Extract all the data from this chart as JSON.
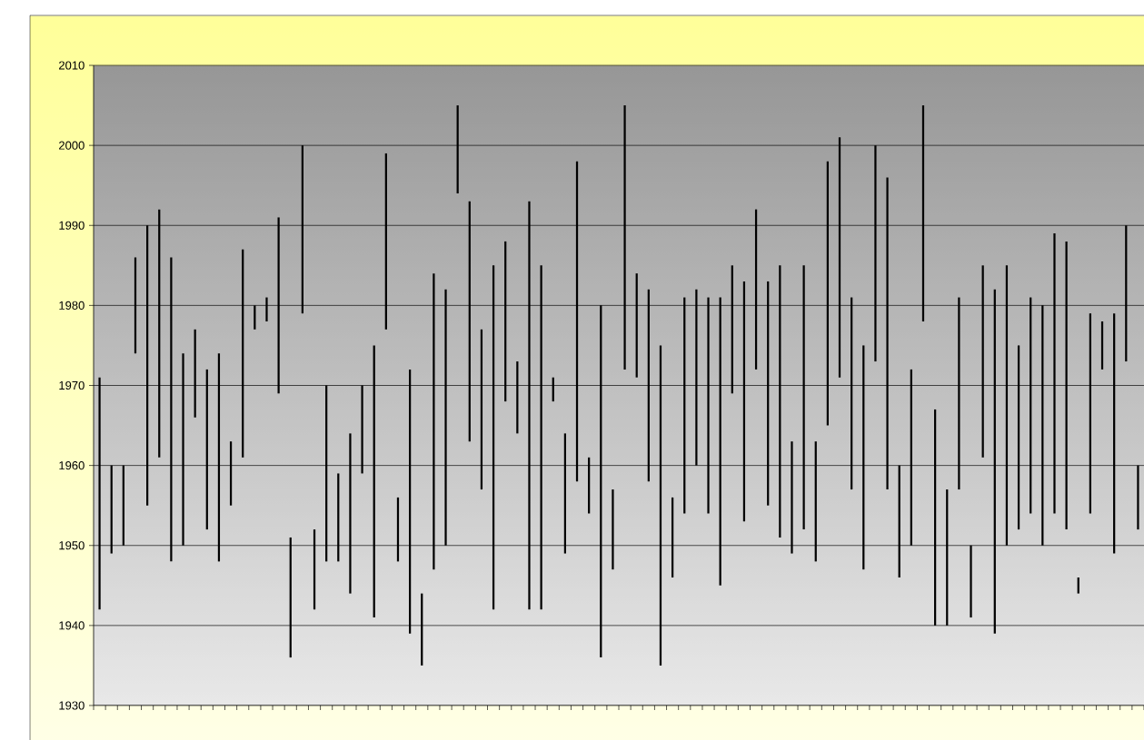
{
  "chart_data": {
    "type": "bar",
    "categories": [
      null,
      null,
      null,
      null,
      null,
      null,
      null,
      null,
      null,
      null,
      null,
      null,
      null,
      null,
      null,
      null,
      null,
      null,
      null,
      null,
      null,
      null,
      null,
      null,
      null,
      null,
      null,
      null,
      null,
      null,
      null,
      null,
      null,
      null,
      null,
      null,
      null,
      null,
      null,
      null,
      null,
      null,
      null,
      null,
      null,
      null,
      null,
      null,
      null,
      null,
      null,
      null,
      null,
      null,
      null,
      null,
      null,
      null,
      null,
      null,
      null,
      null,
      null,
      null,
      null,
      null,
      null,
      null,
      null,
      null,
      null,
      null,
      null,
      null,
      null,
      null,
      null,
      null,
      null,
      null,
      null,
      null,
      null,
      null,
      null,
      null,
      null,
      null
    ],
    "base": [
      1942,
      1949,
      1950,
      1974,
      1955,
      1961,
      1948,
      1950,
      1966,
      1952,
      1948,
      1955,
      1961,
      1977,
      1978,
      1969,
      1936,
      1979,
      1942,
      1948,
      1948,
      1944,
      1959,
      1941,
      1977,
      1948,
      1939,
      1935,
      1947,
      1950,
      1994,
      1963,
      1957,
      1942,
      1968,
      1964,
      1942,
      1942,
      1968,
      1949,
      1958,
      1954,
      1936,
      1947,
      1972,
      1971,
      1958,
      1935,
      1946,
      1954,
      1960,
      1954,
      1945,
      1969,
      1953,
      1972,
      1955,
      1951,
      1949,
      1952,
      1948,
      1965,
      1971,
      1957,
      1947,
      1973,
      1957,
      1946,
      1950,
      1978,
      1940,
      1940,
      1957,
      1941,
      1961,
      1939,
      1950,
      1952,
      1954,
      1950,
      1954,
      1952,
      1944,
      1954,
      1972,
      1949,
      1973,
      1952
    ],
    "values": [
      29,
      11,
      10,
      12,
      35,
      31,
      38,
      24,
      11,
      20,
      26,
      8,
      26,
      3,
      3,
      22,
      15,
      21,
      10,
      22,
      11,
      20,
      11,
      34,
      22,
      8,
      33,
      9,
      37,
      32,
      11,
      30,
      20,
      43,
      20,
      9,
      51,
      43,
      3,
      15,
      40,
      7,
      44,
      10,
      33,
      13,
      24,
      40,
      10,
      27,
      22,
      27,
      36,
      16,
      30,
      20,
      28,
      34,
      14,
      33,
      15,
      33,
      30,
      24,
      28,
      27,
      39,
      14,
      22,
      27,
      27,
      17,
      24,
      9,
      24,
      43,
      35,
      23,
      27,
      30,
      35,
      36,
      2,
      25,
      6,
      30,
      17,
      8
    ],
    "color": "#000000",
    "ylim": [
      1930,
      2010
    ],
    "yticks": [
      1930,
      1940,
      1950,
      1960,
      1970,
      1980,
      1990,
      2000,
      2010
    ],
    "grid": "y"
  }
}
